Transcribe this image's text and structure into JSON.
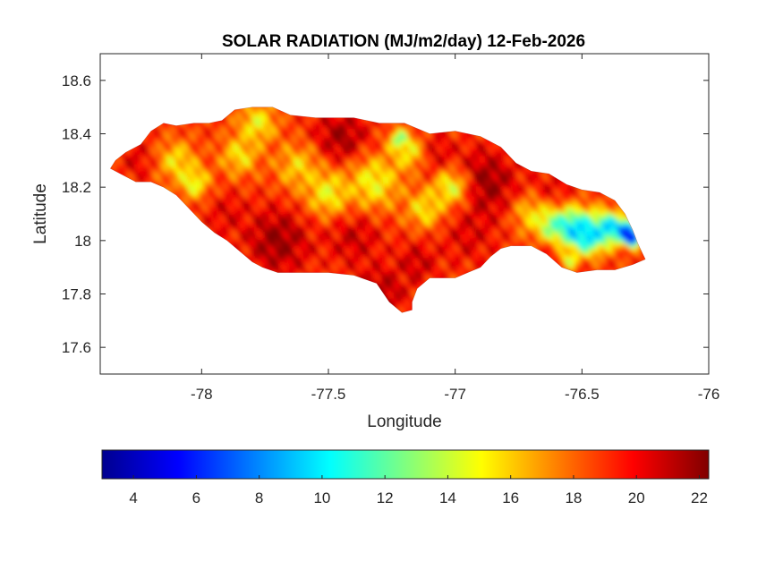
{
  "chart_data": {
    "type": "heatmap",
    "title": "SOLAR RADIATION (MJ/m2/day) 12-Feb-2026",
    "xlabel": "Longitude",
    "ylabel": "Latitude",
    "xlim": [
      -78.4,
      -76.0
    ],
    "ylim": [
      17.5,
      18.7
    ],
    "xticks": [
      -78,
      -77.5,
      -77,
      -76.5,
      -76
    ],
    "xtick_labels": [
      "-78",
      "-77.5",
      "-77",
      "-76.5",
      "-76"
    ],
    "yticks": [
      17.6,
      17.8,
      18.0,
      18.2,
      18.4,
      18.6
    ],
    "ytick_labels": [
      "17.6",
      "17.8",
      "18",
      "18.2",
      "18.4",
      "18.6"
    ],
    "grid": false,
    "colormap": "jet",
    "colorbar": {
      "orientation": "horizontal",
      "placement": "below",
      "range": [
        3,
        22.3
      ],
      "ticks": [
        4,
        6,
        8,
        10,
        12,
        14,
        16,
        18,
        20,
        22
      ],
      "tick_labels": [
        "4",
        "6",
        "8",
        "10",
        "12",
        "14",
        "16",
        "18",
        "20",
        "22"
      ]
    },
    "outline": [
      [
        -78.36,
        18.27
      ],
      [
        -78.34,
        18.3
      ],
      [
        -78.3,
        18.33
      ],
      [
        -78.24,
        18.36
      ],
      [
        -78.2,
        18.41
      ],
      [
        -78.15,
        18.44
      ],
      [
        -78.1,
        18.43
      ],
      [
        -78.03,
        18.44
      ],
      [
        -77.97,
        18.44
      ],
      [
        -77.92,
        18.45
      ],
      [
        -77.87,
        18.49
      ],
      [
        -77.8,
        18.5
      ],
      [
        -77.72,
        18.5
      ],
      [
        -77.65,
        18.47
      ],
      [
        -77.55,
        18.46
      ],
      [
        -77.47,
        18.46
      ],
      [
        -77.4,
        18.46
      ],
      [
        -77.3,
        18.44
      ],
      [
        -77.2,
        18.44
      ],
      [
        -77.1,
        18.4
      ],
      [
        -77.0,
        18.41
      ],
      [
        -76.9,
        18.39
      ],
      [
        -76.82,
        18.35
      ],
      [
        -76.76,
        18.29
      ],
      [
        -76.7,
        18.26
      ],
      [
        -76.63,
        18.25
      ],
      [
        -76.56,
        18.21
      ],
      [
        -76.5,
        18.19
      ],
      [
        -76.43,
        18.18
      ],
      [
        -76.37,
        18.15
      ],
      [
        -76.33,
        18.1
      ],
      [
        -76.3,
        18.04
      ],
      [
        -76.28,
        17.99
      ],
      [
        -76.26,
        17.95
      ],
      [
        -76.25,
        17.93
      ],
      [
        -76.3,
        17.91
      ],
      [
        -76.37,
        17.89
      ],
      [
        -76.44,
        17.89
      ],
      [
        -76.52,
        17.88
      ],
      [
        -76.58,
        17.9
      ],
      [
        -76.64,
        17.95
      ],
      [
        -76.7,
        17.98
      ],
      [
        -76.78,
        17.98
      ],
      [
        -76.82,
        17.97
      ],
      [
        -76.86,
        17.94
      ],
      [
        -76.9,
        17.9
      ],
      [
        -76.95,
        17.88
      ],
      [
        -77.0,
        17.86
      ],
      [
        -77.05,
        17.86
      ],
      [
        -77.1,
        17.86
      ],
      [
        -77.15,
        17.82
      ],
      [
        -77.17,
        17.77
      ],
      [
        -77.17,
        17.74
      ],
      [
        -77.21,
        17.73
      ],
      [
        -77.26,
        17.77
      ],
      [
        -77.31,
        17.84
      ],
      [
        -77.4,
        17.87
      ],
      [
        -77.5,
        17.88
      ],
      [
        -77.6,
        17.88
      ],
      [
        -77.7,
        17.88
      ],
      [
        -77.76,
        17.9
      ],
      [
        -77.8,
        17.92
      ],
      [
        -77.85,
        17.96
      ],
      [
        -77.9,
        18.0
      ],
      [
        -77.95,
        18.03
      ],
      [
        -78.0,
        18.07
      ],
      [
        -78.05,
        18.12
      ],
      [
        -78.1,
        18.17
      ],
      [
        -78.15,
        18.2
      ],
      [
        -78.2,
        18.22
      ],
      [
        -78.26,
        18.22
      ],
      [
        -78.3,
        18.24
      ],
      [
        -78.36,
        18.27
      ]
    ],
    "field": {
      "base_value": 19.0,
      "anomalies": [
        {
          "lon": -77.7,
          "lat": 18.0,
          "value": 22.0,
          "spread": 0.09
        },
        {
          "lon": -77.3,
          "lat": 17.8,
          "value": 21.8,
          "spread": 0.07
        },
        {
          "lon": -77.4,
          "lat": 18.02,
          "value": 21.0,
          "spread": 0.08
        },
        {
          "lon": -77.15,
          "lat": 17.92,
          "value": 21.0,
          "spread": 0.06
        },
        {
          "lon": -76.95,
          "lat": 18.02,
          "value": 20.5,
          "spread": 0.08
        },
        {
          "lon": -76.88,
          "lat": 18.22,
          "value": 22.0,
          "spread": 0.09
        },
        {
          "lon": -77.45,
          "lat": 18.38,
          "value": 21.8,
          "spread": 0.08
        },
        {
          "lon": -77.1,
          "lat": 18.32,
          "value": 21.5,
          "spread": 0.06
        },
        {
          "lon": -78.25,
          "lat": 18.3,
          "value": 20.5,
          "spread": 0.05
        },
        {
          "lon": -77.9,
          "lat": 18.1,
          "value": 20.5,
          "spread": 0.06
        },
        {
          "lon": -76.55,
          "lat": 17.95,
          "value": 21.5,
          "spread": 0.06
        },
        {
          "lon": -76.62,
          "lat": 18.18,
          "value": 20.5,
          "spread": 0.06
        },
        {
          "lon": -78.1,
          "lat": 18.3,
          "value": 15.5,
          "spread": 0.05
        },
        {
          "lon": -78.03,
          "lat": 18.22,
          "value": 14.5,
          "spread": 0.04
        },
        {
          "lon": -77.85,
          "lat": 18.32,
          "value": 15.5,
          "spread": 0.05
        },
        {
          "lon": -77.78,
          "lat": 18.44,
          "value": 15.0,
          "spread": 0.05
        },
        {
          "lon": -77.62,
          "lat": 18.28,
          "value": 16.0,
          "spread": 0.06
        },
        {
          "lon": -77.5,
          "lat": 18.18,
          "value": 15.0,
          "spread": 0.06
        },
        {
          "lon": -77.32,
          "lat": 18.22,
          "value": 15.0,
          "spread": 0.07
        },
        {
          "lon": -77.18,
          "lat": 18.33,
          "value": 15.5,
          "spread": 0.05
        },
        {
          "lon": -77.12,
          "lat": 18.12,
          "value": 15.5,
          "spread": 0.05
        },
        {
          "lon": -77.02,
          "lat": 18.2,
          "value": 14.8,
          "spread": 0.05
        },
        {
          "lon": -77.22,
          "lat": 18.38,
          "value": 12.5,
          "spread": 0.025
        },
        {
          "lon": -76.7,
          "lat": 18.1,
          "value": 16.0,
          "spread": 0.05
        },
        {
          "lon": -76.62,
          "lat": 18.06,
          "value": 13.0,
          "spread": 0.04
        },
        {
          "lon": -76.54,
          "lat": 18.05,
          "value": 10.0,
          "spread": 0.05
        },
        {
          "lon": -76.48,
          "lat": 18.02,
          "value": 9.0,
          "spread": 0.05
        },
        {
          "lon": -76.4,
          "lat": 18.05,
          "value": 9.5,
          "spread": 0.04
        },
        {
          "lon": -76.33,
          "lat": 18.04,
          "value": 6.5,
          "spread": 0.03
        },
        {
          "lon": -76.3,
          "lat": 18.01,
          "value": 3.5,
          "spread": 0.02
        },
        {
          "lon": -76.55,
          "lat": 17.93,
          "value": 14.5,
          "spread": 0.03
        }
      ]
    }
  }
}
